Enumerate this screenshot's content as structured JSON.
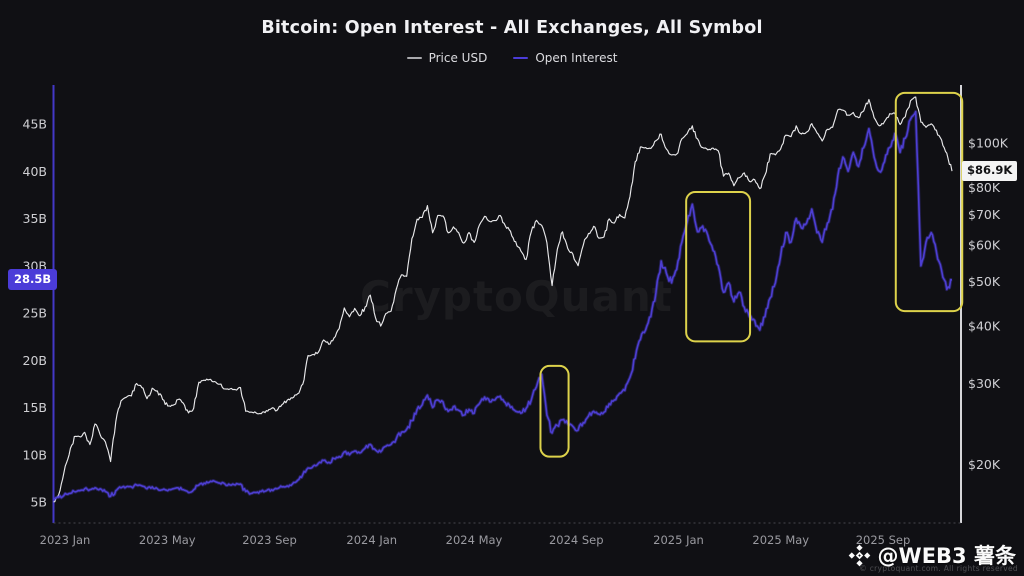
{
  "title": "Bitcoin: Open Interest - All Exchanges, All Symbol",
  "legend": [
    {
      "label": "Price USD",
      "color": "#a9a9ad"
    },
    {
      "label": "Open Interest",
      "color": "#4b3cd8"
    }
  ],
  "watermark_center": "CryptoQuant",
  "watermark_badge": {
    "handle": "@WEB3 薯条",
    "subtext": "© cryptoquant.com. All rights reserved"
  },
  "badges": {
    "left": {
      "label": "28.5B",
      "value": 28.5,
      "axis": "left"
    },
    "right": {
      "label": "$86.9K",
      "value": 86.9,
      "axis": "right"
    }
  },
  "colors": {
    "background": "#101014",
    "price_line": "#e8e8ea",
    "oi_line": "#4d3ed2",
    "oi_glow": "rgba(77,62,210,0.35)",
    "highlight_box": "#ddd24b",
    "left_axis_line": "#4338c8",
    "right_axis_line": "#d6d6da",
    "bottom_axis_line": "#46464e"
  },
  "chart_data": {
    "type": "line",
    "title": "Bitcoin: Open Interest - All Exchanges, All Symbol",
    "grid": false,
    "legend_position": "top-center",
    "x_axis": {
      "unit": "months since 2023-01",
      "ticks": [
        {
          "label": "2023 Jan",
          "month": 0
        },
        {
          "label": "2023 May",
          "month": 4
        },
        {
          "label": "2023 Sep",
          "month": 8
        },
        {
          "label": "2024 Jan",
          "month": 12
        },
        {
          "label": "2024 May",
          "month": 16
        },
        {
          "label": "2024 Sep",
          "month": 20
        },
        {
          "label": "2025 Jan",
          "month": 24
        },
        {
          "label": "2025 May",
          "month": 28
        },
        {
          "label": "2025 Sep",
          "month": 32
        }
      ]
    },
    "y_left": {
      "name": "Open Interest",
      "unit": "billion USD",
      "scale": "linear",
      "range": [
        5,
        48
      ],
      "ticks": [
        {
          "label": "45B",
          "value": 45
        },
        {
          "label": "40B",
          "value": 40
        },
        {
          "label": "35B",
          "value": 35
        },
        {
          "label": "30B",
          "value": 30
        },
        {
          "label": "25B",
          "value": 25
        },
        {
          "label": "20B",
          "value": 20
        },
        {
          "label": "15B",
          "value": 15
        },
        {
          "label": "10B",
          "value": 10
        },
        {
          "label": "5B",
          "value": 5
        }
      ]
    },
    "y_right": {
      "name": "Price USD",
      "unit": "thousand USD",
      "scale": "log",
      "range": [
        16,
        130
      ],
      "ticks": [
        {
          "label": "$100K",
          "value": 100
        },
        {
          "label": "$80K",
          "value": 80
        },
        {
          "label": "$70K",
          "value": 70
        },
        {
          "label": "$60K",
          "value": 60
        },
        {
          "label": "$50K",
          "value": 50
        },
        {
          "label": "$40K",
          "value": 40
        },
        {
          "label": "$30K",
          "value": 30
        },
        {
          "label": "$20K",
          "value": 20
        }
      ]
    },
    "x_start_month": -0.45,
    "x_end_month": 34.7,
    "series": [
      {
        "name": "Price USD",
        "axis": "right",
        "color": "#e8e8ea",
        "unit": "K USD",
        "last_value_badge": "$86.9K",
        "values": [
          16.6,
          17.2,
          19.2,
          21.0,
          23.0,
          23.0,
          23.5,
          22.1,
          24.5,
          23.2,
          22.4,
          20.3,
          24.8,
          27.5,
          28.0,
          28.2,
          30.0,
          29.4,
          27.8,
          29.3,
          28.9,
          27.7,
          26.8,
          26.9,
          27.7,
          27.2,
          25.9,
          26.5,
          30.2,
          30.5,
          30.6,
          30.3,
          29.9,
          29.2,
          29.2,
          29.1,
          29.4,
          26.1,
          26.0,
          25.9,
          25.8,
          26.2,
          26.5,
          26.2,
          27.0,
          27.6,
          27.9,
          28.5,
          29.9,
          34.5,
          34.7,
          35.1,
          37.3,
          36.5,
          37.7,
          39.5,
          43.8,
          41.9,
          43.7,
          42.1,
          44.0,
          46.7,
          41.7,
          40.0,
          42.6,
          43.1,
          48.1,
          51.7,
          51.3,
          62.0,
          68.3,
          68.9,
          73.1,
          63.8,
          69.6,
          69.4,
          63.8,
          65.7,
          63.9,
          60.6,
          63.9,
          60.8,
          66.3,
          69.3,
          67.5,
          67.8,
          69.6,
          66.0,
          64.3,
          61.0,
          58.2,
          55.8,
          64.1,
          67.9,
          66.2,
          60.7,
          49.0,
          58.7,
          64.1,
          59.0,
          57.3,
          54.1,
          60.0,
          63.6,
          65.9,
          62.1,
          62.5,
          68.4,
          67.0,
          69.9,
          68.7,
          76.5,
          91.0,
          98.0,
          97.7,
          97.3,
          101.2,
          104.5,
          97.0,
          94.2,
          94.6,
          102.2,
          104.7,
          109.0,
          102.1,
          97.7,
          96.6,
          97.5,
          96.1,
          84.7,
          86.0,
          80.7,
          84.0,
          86.1,
          82.5,
          83.2,
          79.6,
          85.2,
          94.7,
          94.2,
          97.0,
          104.0,
          103.2,
          109.0,
          104.6,
          105.6,
          110.2,
          105.2,
          101.0,
          107.1,
          108.2,
          118.0,
          117.9,
          115.0,
          116.5,
          113.5,
          117.4,
          124.3,
          113.5,
          109.0,
          111.3,
          115.8,
          116.1,
          109.7,
          114.0,
          123.5,
          125.9,
          111.0,
          108.2,
          110.1,
          106.6,
          101.5,
          95.0,
          86.9
        ]
      },
      {
        "name": "Open Interest",
        "axis": "left",
        "color": "#4d3ed2",
        "unit": "B USD",
        "last_value_badge": "28.5B",
        "values": [
          5.4,
          5.5,
          5.7,
          5.9,
          6.1,
          6.2,
          6.4,
          6.3,
          6.5,
          6.4,
          6.1,
          5.6,
          6.2,
          6.5,
          6.6,
          6.6,
          6.8,
          6.7,
          6.4,
          6.6,
          6.4,
          6.3,
          6.2,
          6.4,
          6.5,
          6.3,
          6.0,
          6.3,
          6.8,
          7.0,
          7.1,
          7.2,
          7.0,
          6.9,
          6.8,
          6.8,
          6.9,
          6.1,
          5.9,
          6.0,
          6.1,
          6.2,
          6.3,
          6.4,
          6.6,
          6.7,
          6.9,
          7.3,
          7.9,
          8.6,
          8.8,
          9.1,
          9.4,
          9.2,
          9.6,
          9.8,
          10.3,
          10.0,
          10.4,
          10.2,
          10.7,
          11.1,
          10.5,
          10.3,
          10.9,
          11.1,
          11.7,
          12.4,
          12.7,
          13.6,
          14.8,
          15.3,
          16.3,
          15.0,
          15.8,
          15.6,
          14.6,
          15.1,
          14.7,
          14.2,
          14.8,
          14.4,
          15.4,
          16.1,
          15.6,
          15.8,
          16.2,
          15.5,
          15.0,
          14.6,
          14.4,
          14.9,
          15.8,
          17.2,
          18.5,
          14.2,
          12.3,
          13.1,
          13.7,
          13.3,
          13.0,
          12.6,
          13.4,
          14.1,
          14.6,
          14.3,
          14.5,
          15.4,
          15.8,
          16.5,
          16.8,
          18.2,
          20.2,
          22.2,
          23.2,
          24.6,
          27.2,
          30.5,
          29.2,
          28.2,
          29.6,
          32.5,
          34.6,
          36.5,
          33.6,
          34.2,
          33.2,
          31.6,
          30.0,
          27.2,
          28.2,
          26.2,
          27.2,
          25.6,
          24.6,
          24.2,
          23.2,
          24.6,
          26.6,
          28.2,
          31.0,
          33.5,
          32.5,
          35.0,
          34.0,
          34.5,
          36.0,
          33.5,
          32.5,
          34.5,
          36.0,
          39.5,
          41.5,
          40.0,
          42.0,
          40.5,
          42.5,
          44.5,
          41.5,
          40.0,
          41.0,
          42.5,
          44.0,
          42.0,
          43.5,
          45.5,
          46.3,
          30.0,
          32.5,
          33.5,
          31.5,
          29.5,
          27.5,
          28.5
        ]
      }
    ],
    "annotations": [
      {
        "type": "box",
        "x_month": [
          18.6,
          19.7
        ],
        "oi_range": [
          9.8,
          19.4
        ]
      },
      {
        "type": "box",
        "x_month": [
          24.3,
          26.8
        ],
        "oi_range": [
          22.0,
          37.8
        ]
      },
      {
        "type": "box",
        "x_month": [
          32.5,
          35.1
        ],
        "oi_range": [
          25.2,
          48.3
        ]
      }
    ]
  }
}
